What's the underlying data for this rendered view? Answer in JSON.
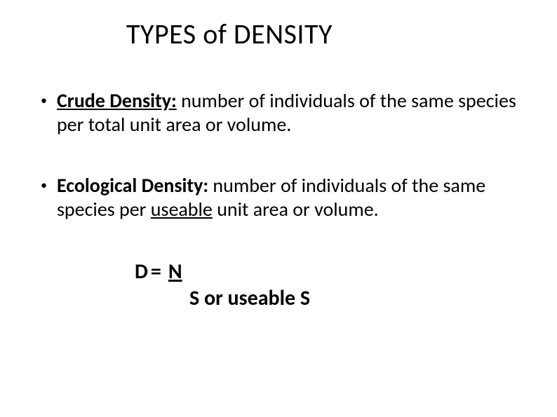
{
  "title": "TYPES of DENSITY",
  "background_color": "#ffffff",
  "text_color": "#000000",
  "title_fontsize": 40,
  "body_fontsize": 28,
  "equation_fontsize": 30,
  "font_family": "Calibri",
  "bullets": [
    {
      "term": "Crude Density:",
      "definition": " number of individuals of the same species per total unit area or volume."
    },
    {
      "term": "Ecological Density:",
      "definition_prefix": " number of individuals of the same species per ",
      "underlined_word": "useable",
      "definition_suffix": " unit area or volume."
    }
  ],
  "equation": {
    "left": "D",
    "eq": "=",
    "numerator": "N",
    "denominator": "S  or useable S"
  }
}
